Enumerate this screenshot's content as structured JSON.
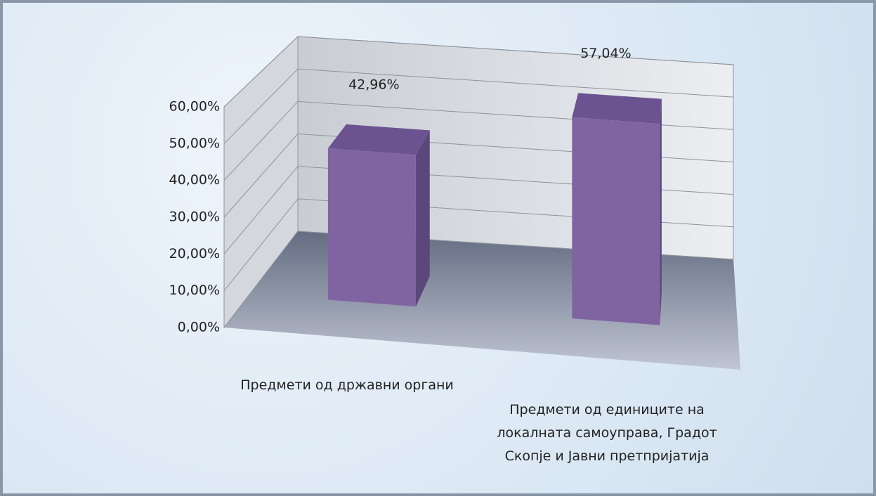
{
  "chart_data": {
    "type": "bar3d",
    "categories": [
      "Предмети од државни органи",
      "Предмети од единиците на локалната самоуправа, Градот Скопје и Јавни претпријатија"
    ],
    "values": [
      42.96,
      57.04
    ],
    "value_labels": [
      "42,96%",
      "57,04%"
    ],
    "color": "#8064a2",
    "ylim": [
      0,
      60
    ],
    "yticks": [
      {
        "value": 0,
        "label": "0,00%"
      },
      {
        "value": 10,
        "label": "10,00%"
      },
      {
        "value": 20,
        "label": "20,00%"
      },
      {
        "value": 30,
        "label": "30,00%"
      },
      {
        "value": 40,
        "label": "40,00%"
      },
      {
        "value": 50,
        "label": "50,00%"
      },
      {
        "value": 60,
        "label": "60,00%"
      }
    ],
    "grid": true
  }
}
